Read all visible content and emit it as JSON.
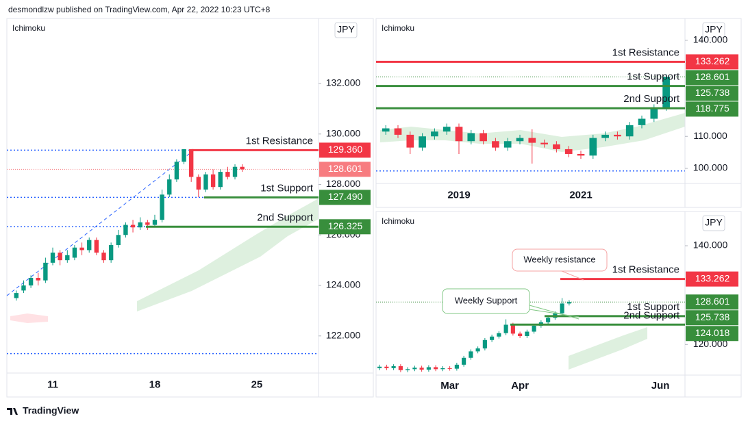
{
  "header": {
    "text": "desmondlzw published on TradingView.com, Apr 22, 2022 10:23 UTC+8"
  },
  "footer": {
    "brand": "TradingView"
  },
  "chart_data": [
    {
      "type": "candlestick",
      "indicator": "Ichimoku",
      "currency": "JPY",
      "categories": [
        null,
        null,
        null,
        null,
        null,
        "11",
        null,
        null,
        null,
        null,
        null,
        null,
        null,
        null,
        null,
        null,
        null,
        null,
        null,
        "18",
        null,
        null,
        null,
        null,
        null,
        null,
        null,
        null,
        null,
        null,
        null,
        null,
        null,
        "25",
        null,
        null,
        null,
        null,
        null,
        null,
        null,
        null
      ],
      "open": [
        123.5,
        123.8,
        124.0,
        124.3,
        124.2,
        124.9,
        125.3,
        125.0,
        125.1,
        125.5,
        125.4,
        125.8,
        125.3,
        125.0,
        125.6,
        126.0,
        126.4,
        126.3,
        126.5,
        126.4,
        126.6,
        127.6,
        128.2,
        128.9,
        129.4,
        128.3,
        127.8,
        128.4,
        127.9,
        128.5,
        128.3,
        128.7,
        null,
        null,
        null,
        null,
        null,
        null,
        null,
        null,
        null,
        null
      ],
      "high": [
        123.8,
        124.2,
        124.4,
        124.5,
        125.1,
        125.5,
        125.4,
        125.4,
        125.6,
        125.7,
        125.9,
        125.9,
        125.4,
        125.7,
        126.2,
        126.5,
        126.6,
        126.7,
        126.6,
        126.8,
        127.8,
        128.4,
        129.0,
        129.4,
        129.4,
        128.4,
        128.5,
        128.6,
        128.6,
        128.7,
        128.8,
        128.8,
        null,
        null,
        null,
        null,
        null,
        null,
        null,
        null,
        null,
        null
      ],
      "low": [
        123.4,
        123.7,
        123.9,
        124.0,
        124.1,
        124.8,
        124.8,
        124.9,
        125.0,
        125.2,
        125.3,
        125.2,
        124.9,
        124.9,
        125.5,
        125.9,
        126.1,
        126.2,
        126.2,
        126.3,
        126.5,
        127.5,
        128.1,
        128.8,
        128.1,
        127.5,
        127.7,
        127.8,
        127.8,
        128.2,
        128.2,
        128.5,
        null,
        null,
        null,
        null,
        null,
        null,
        null,
        null,
        null,
        null
      ],
      "close": [
        123.7,
        124.0,
        124.3,
        124.2,
        124.9,
        125.3,
        125.0,
        125.2,
        125.5,
        125.4,
        125.8,
        125.3,
        125.0,
        125.6,
        126.0,
        126.4,
        126.3,
        126.5,
        126.4,
        126.6,
        127.6,
        128.2,
        128.9,
        129.4,
        128.3,
        127.8,
        128.4,
        127.9,
        128.5,
        128.3,
        128.7,
        128.6,
        null,
        null,
        null,
        null,
        null,
        null,
        null,
        null,
        null,
        null
      ],
      "up_color": "#089981",
      "down_color": "#f23645",
      "ylim": [
        120.53,
        134.55
      ],
      "yticks": [
        {
          "value": 122,
          "label": "122.000"
        },
        {
          "value": 124,
          "label": "124.000"
        },
        {
          "value": 126,
          "label": "126.000"
        },
        {
          "value": 128,
          "label": "128.000"
        },
        {
          "value": 130,
          "label": "130.000"
        },
        {
          "value": 132,
          "label": "132.000"
        }
      ],
      "grid": false,
      "last_price": 128.601,
      "last_price_label": "128.601",
      "last_price_color": "#f77c80",
      "guide_lines": [
        129.36,
        127.49,
        126.325,
        121.3
      ],
      "guide_color": "#2962ff",
      "levels": {
        "names": [
          "1st Resistance",
          "1st Support",
          "2nd Support"
        ],
        "values": [
          129.36,
          127.49,
          126.325
        ],
        "value_labels": [
          "129.360",
          "127.490",
          "126.325"
        ],
        "colors": [
          "#f23645",
          "#388e3c",
          "#388e3c"
        ]
      }
    },
    {
      "type": "candlestick",
      "indicator": "Ichimoku",
      "currency": "JPY",
      "categories": [
        null,
        null,
        null,
        null,
        null,
        null,
        "2019",
        null,
        null,
        null,
        null,
        null,
        null,
        null,
        null,
        null,
        "2021",
        null,
        null,
        null,
        null,
        null,
        null,
        null,
        null
      ],
      "open": [
        111.5,
        112.5,
        110.5,
        106.5,
        110,
        111.5,
        113,
        108.5,
        111,
        108.5,
        106.5,
        108.5,
        109.5,
        108,
        107.5,
        106,
        104.5,
        104,
        109.5,
        110.5,
        110,
        113.5,
        115.5,
        119,
        null
      ],
      "high": [
        113.5,
        113.5,
        111.5,
        111,
        112.5,
        114,
        114,
        112,
        112,
        109.5,
        109.5,
        110.5,
        112.2,
        109,
        108.5,
        107,
        105.5,
        110.5,
        111.5,
        111.5,
        114.5,
        116.5,
        120,
        129.4,
        null
      ],
      "low": [
        110.5,
        109.5,
        104.5,
        105.5,
        109,
        110.5,
        104.5,
        107.5,
        107.5,
        105.5,
        105.5,
        107.5,
        101.5,
        106.5,
        105,
        103.5,
        103,
        103,
        108.5,
        109,
        109,
        112.5,
        114.5,
        118,
        null
      ],
      "close": [
        112.5,
        110.5,
        106.5,
        110,
        111.5,
        113,
        108.5,
        111,
        108.5,
        106.5,
        108.5,
        109.5,
        108,
        107.5,
        106,
        104.5,
        104,
        109.5,
        110.5,
        110,
        113.5,
        115.5,
        119,
        128.6,
        null
      ],
      "up_color": "#089981",
      "down_color": "#f23645",
      "ylim": [
        95.3,
        146.6
      ],
      "yticks": [
        {
          "value": 100,
          "label": "100.000"
        },
        {
          "value": 110,
          "label": "110.000"
        },
        {
          "value": 140,
          "label": "140.000"
        }
      ],
      "grid": false,
      "last_price": 128.601,
      "last_price_label": "128.601",
      "last_price_color": "#388e3c",
      "guide_lines": [
        99.2
      ],
      "guide_color": "#2962ff",
      "levels": {
        "names": [
          "1st Resistance",
          "1st Support",
          "2nd Support"
        ],
        "values": [
          133.262,
          125.738,
          118.775
        ],
        "value_labels": [
          "133.262",
          "125.738",
          "118.775"
        ],
        "colors": [
          "#f23645",
          "#388e3c",
          "#388e3c"
        ]
      }
    },
    {
      "type": "candlestick",
      "indicator": "Ichimoku",
      "currency": "JPY",
      "categories": [
        null,
        null,
        null,
        null,
        null,
        null,
        null,
        null,
        null,
        null,
        "Mar",
        null,
        null,
        null,
        null,
        null,
        null,
        null,
        null,
        null,
        "Apr",
        null,
        null,
        null,
        null,
        null,
        null,
        null,
        null,
        null,
        null,
        null,
        null,
        null,
        null,
        null,
        null,
        null,
        null,
        null,
        "Jun",
        null,
        null,
        null
      ],
      "open": [
        115.2,
        115.5,
        115.2,
        115.6,
        114.8,
        115.0,
        115.3,
        114.9,
        115.4,
        115.0,
        115.2,
        115.1,
        115.9,
        117.3,
        118.6,
        119.2,
        120.9,
        121.6,
        122.3,
        124.0,
        122.2,
        121.7,
        122.6,
        123.8,
        124.5,
        125.4,
        126.3,
        128.3,
        null,
        null,
        null,
        null,
        null,
        null,
        null,
        null,
        null,
        null,
        null,
        null,
        null,
        null,
        null,
        null
      ],
      "high": [
        115.9,
        115.9,
        116.0,
        116.0,
        115.4,
        115.7,
        115.7,
        115.8,
        115.8,
        115.6,
        115.6,
        116.3,
        117.7,
        119.0,
        119.6,
        121.3,
        122.0,
        122.7,
        125.1,
        124.4,
        122.6,
        123.0,
        124.2,
        124.9,
        125.8,
        126.7,
        129.4,
        129.0,
        null,
        null,
        null,
        null,
        null,
        null,
        null,
        null,
        null,
        null,
        null,
        null,
        null,
        null,
        null,
        null
      ],
      "low": [
        114.8,
        114.8,
        114.8,
        114.4,
        114.4,
        114.6,
        114.5,
        114.5,
        114.6,
        114.6,
        114.7,
        114.7,
        115.5,
        116.9,
        118.2,
        118.8,
        120.5,
        121.2,
        121.9,
        121.8,
        121.3,
        121.3,
        122.2,
        123.4,
        124.1,
        125.0,
        125.9,
        127.9,
        null,
        null,
        null,
        null,
        null,
        null,
        null,
        null,
        null,
        null,
        null,
        null,
        null,
        null,
        null,
        null
      ],
      "close": [
        115.5,
        115.2,
        115.6,
        114.8,
        115.0,
        115.3,
        114.9,
        115.4,
        115.0,
        115.2,
        115.1,
        115.9,
        117.3,
        118.6,
        119.2,
        120.9,
        121.6,
        122.3,
        124.0,
        122.2,
        121.7,
        122.6,
        123.8,
        124.5,
        125.4,
        126.3,
        128.3,
        128.6,
        null,
        null,
        null,
        null,
        null,
        null,
        null,
        null,
        null,
        null,
        null,
        null,
        null,
        null,
        null,
        null
      ],
      "up_color": "#089981",
      "down_color": "#f23645",
      "ylim": [
        113.8,
        146.8
      ],
      "yticks": [
        {
          "value": 120,
          "label": "120.000"
        },
        {
          "value": 140,
          "label": "140.000"
        }
      ],
      "grid": false,
      "last_price": 128.601,
      "last_price_label": "128.601",
      "last_price_color": "#388e3c",
      "guide_lines": [],
      "guide_color": "#2962ff",
      "levels": {
        "names": [
          "1st Resistance",
          "1st Support",
          "2nd Support"
        ],
        "values": [
          133.262,
          125.738,
          124.018
        ],
        "value_labels": [
          "133.262",
          "125.738",
          "124.018"
        ],
        "colors": [
          "#f23645",
          "#388e3c",
          "#388e3c"
        ]
      },
      "annotations": [
        "Weekly resistance",
        "Weekly Support"
      ]
    }
  ]
}
